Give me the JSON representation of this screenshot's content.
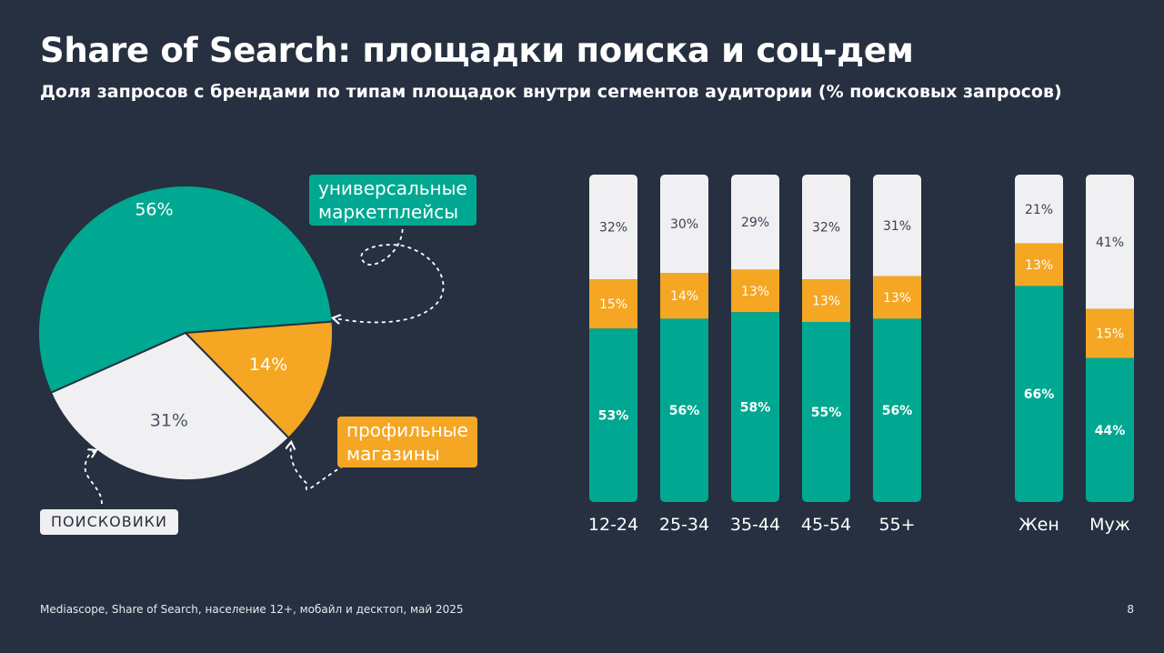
{
  "header": {
    "title": "Share of Search: площадки поиска и соц-дем",
    "subtitle": "Доля запросов с брендами по типам площадок внутри сегментов аудитории (% поисковых запросов)"
  },
  "footer": {
    "source": "Mediascope, Share of Search, население 12+, мобайл и десктоп, май 2025",
    "page_number": "8"
  },
  "callouts": {
    "marketplaces": "универсальные\nмаркетплейсы",
    "stores": "профильные\nмагазины",
    "search": "ПОИСКОВИКИ"
  },
  "colors": {
    "background": "#263040",
    "marketplaces": "#00a891",
    "stores": "#f5a623",
    "search": "#f0f0f2"
  },
  "chart_data": [
    {
      "type": "pie",
      "categories": [
        "универсальные маркетплейсы",
        "профильные магазины",
        "поисковики"
      ],
      "values": [
        56,
        14,
        31
      ],
      "labels": [
        "56%",
        "14%",
        "31%"
      ]
    },
    {
      "type": "bar",
      "stacked": true,
      "categories": [
        "12-24",
        "25-34",
        "35-44",
        "45-54",
        "55+",
        "Жен",
        "Муж"
      ],
      "series": [
        {
          "name": "универсальные маркетплейсы",
          "values": [
            53,
            56,
            58,
            55,
            56,
            66,
            44
          ]
        },
        {
          "name": "профильные магазины",
          "values": [
            15,
            14,
            13,
            13,
            13,
            13,
            15
          ]
        },
        {
          "name": "поисковики",
          "values": [
            32,
            30,
            29,
            32,
            31,
            21,
            41
          ]
        }
      ]
    }
  ]
}
